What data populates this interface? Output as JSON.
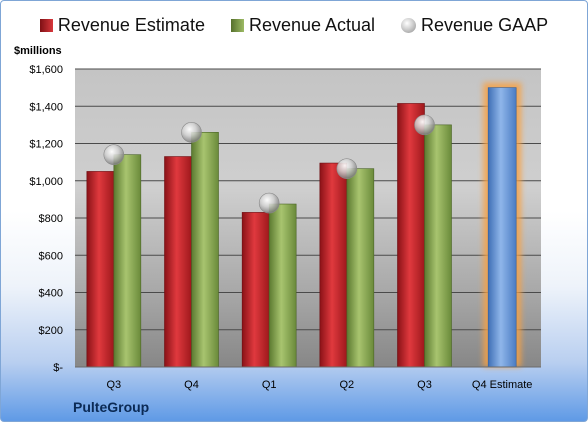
{
  "chart_data": {
    "type": "bar",
    "unit_label": "$millions",
    "categories": [
      "Q3",
      "Q4",
      "Q1",
      "Q2",
      "Q3",
      "Q4 Estimate"
    ],
    "series": [
      {
        "name": "Revenue Estimate",
        "color": "#c9282d",
        "values": [
          1050,
          1130,
          830,
          1095,
          1415,
          null
        ]
      },
      {
        "name": "Revenue Actual",
        "color": "#8fad5a",
        "values": [
          1140,
          1260,
          875,
          1065,
          1300,
          null
        ]
      },
      {
        "name": "Revenue GAAP",
        "color": "#c0c0c0",
        "marker": "circle",
        "values": [
          1140,
          1260,
          880,
          1065,
          1300,
          null
        ]
      }
    ],
    "estimate": {
      "category": "Q4 Estimate",
      "value": 1500,
      "color": "#6b9ad8",
      "glow": "#f7a145"
    },
    "ylim": [
      0,
      1600
    ],
    "yticks": [
      0,
      200,
      400,
      600,
      800,
      1000,
      1200,
      1400,
      1600
    ],
    "ytick_labels": [
      "$-",
      "$200",
      "$400",
      "$600",
      "$800",
      "$1,000",
      "$1,200",
      "$1,400",
      "$1,600"
    ],
    "grid": true,
    "legend_position": "top"
  },
  "footer": {
    "company": "PulteGroup"
  }
}
